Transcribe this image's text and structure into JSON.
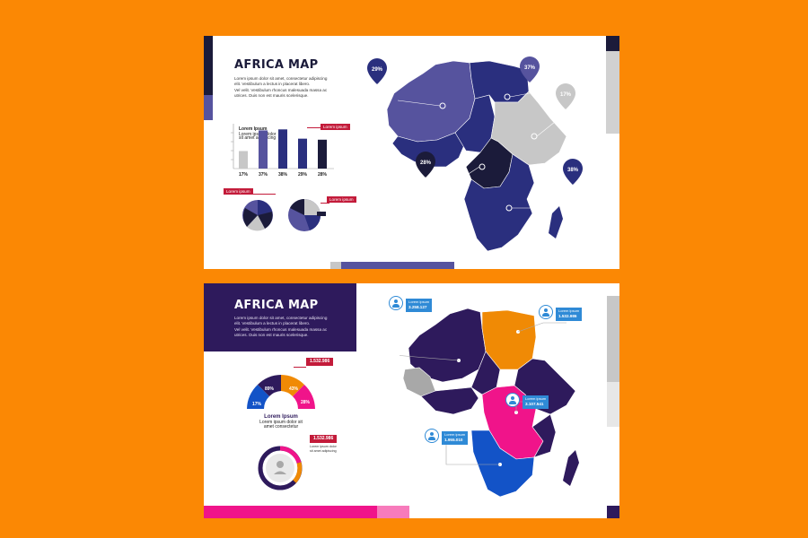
{
  "slide1": {
    "title": "AFRICA MAP",
    "body": [
      "Lorem ipsum dolor sit amet, consectetur adipiscing",
      "elit. Vestibulum a lectus in placerat libero.",
      "Vel velit. Vestibulum rhoncus malesuada massa ac",
      "utrices. Duis non est mauris scelerisque."
    ],
    "chart_title": "Lorem Ipsum",
    "chart_sub": [
      "Lorem ipsum dolor",
      "sit amet adipiscing"
    ],
    "bar_tag": "Lorem ipsum",
    "pie_tag_left": "Lorem ipsum",
    "pie_tag_right": "Lorem ipsum",
    "map_pins": [
      "29%",
      "37%",
      "17%",
      "28%",
      "38%"
    ],
    "colors": {
      "navy": "#2a2f7e",
      "slate": "#56539e",
      "dark": "#1b1b3a",
      "grey": "#c7c7c7",
      "red": "#c31b3a"
    },
    "chart_data": {
      "type": "bar",
      "categories": [
        "17%",
        "37%",
        "38%",
        "29%",
        "28%"
      ],
      "values": [
        17,
        37,
        38,
        29,
        28
      ]
    }
  },
  "slide2": {
    "title": "AFRICA MAP",
    "body": [
      "Lorem ipsum dolor sit amet, consectetur adipiscing",
      "elit. Vestibulum a lectus in placerat libero.",
      "Vel velit. Vestibulum rhoncus malesuada massa ac",
      "utrices. Duis non est mauris scelerisque."
    ],
    "gauge_value": "1.532.986",
    "gauge_segments": [
      "89%",
      "43%",
      "17%",
      "28%"
    ],
    "gauge_title": "Lorem Ipsum",
    "gauge_sub": [
      "Lorem ipsum dolor sit",
      "amet consectetur"
    ],
    "donut_value": "1.532.986",
    "donut_sub": [
      "Lorem ipsum dolor",
      "sit amet adipiscing"
    ],
    "cards": [
      {
        "label": "Lorem ipsum",
        "value": "3.258.127"
      },
      {
        "label": "Lorem ipsum",
        "value": "1.532.986"
      },
      {
        "label": "Lorem ipsum",
        "value": "3.107.541"
      },
      {
        "label": "Lorem ipsum",
        "value": "1.955.010"
      }
    ],
    "colors": {
      "purple": "#2e1a5c",
      "orange": "#f08a05",
      "pink": "#f0148a",
      "blue": "#1353c7",
      "grey": "#a8a8a8",
      "red": "#c31b3a"
    }
  }
}
